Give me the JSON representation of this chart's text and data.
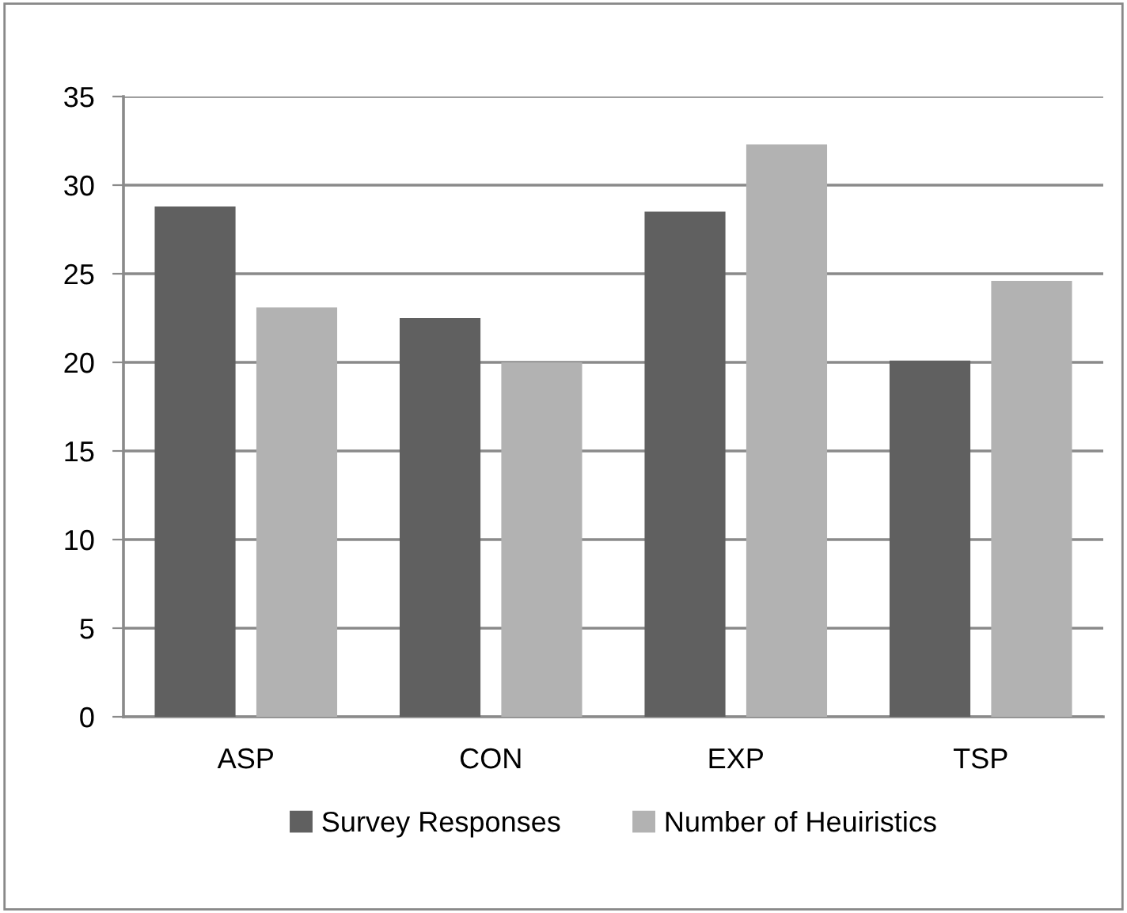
{
  "chart_data": {
    "type": "bar",
    "categories": [
      "ASP",
      "CON",
      "EXP",
      "TSP"
    ],
    "series": [
      {
        "name": "Survey Responses",
        "color": "#606060",
        "values": [
          28.8,
          22.5,
          28.5,
          20.1
        ]
      },
      {
        "name": "Number of Heuiristics",
        "color": "#b2b2b2",
        "values": [
          23.1,
          20.0,
          32.3,
          24.6
        ]
      }
    ],
    "ylim": [
      0,
      35
    ],
    "yticks": [
      0,
      5,
      10,
      15,
      20,
      25,
      30,
      35
    ],
    "grid": "y",
    "legend": "bottom"
  }
}
